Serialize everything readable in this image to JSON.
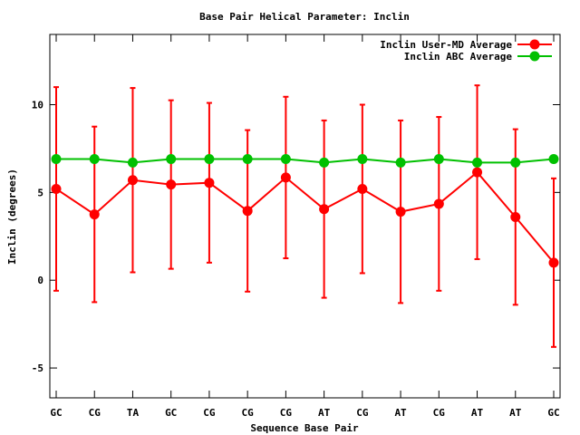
{
  "chart_data": {
    "type": "line",
    "title": "Base Pair Helical Parameter: Inclin",
    "xlabel": "Sequence Base Pair",
    "ylabel": "Inclin (degrees)",
    "categories": [
      "GC",
      "CG",
      "TA",
      "GC",
      "CG",
      "CG",
      "CG",
      "AT",
      "CG",
      "AT",
      "CG",
      "AT",
      "AT",
      "GC"
    ],
    "ylim": [
      -6.7,
      14
    ],
    "yticks": [
      "-5",
      "0",
      "5",
      "10"
    ],
    "legend_position": "top-right",
    "grid": false,
    "series": [
      {
        "name": "Inclin User-MD Average",
        "color": "#ff0000",
        "values": [
          5.2,
          3.75,
          5.7,
          5.45,
          5.55,
          3.95,
          5.85,
          4.05,
          5.2,
          3.9,
          4.35,
          6.15,
          3.6,
          1.0
        ],
        "errors": [
          5.8,
          5.0,
          5.25,
          4.8,
          4.55,
          4.6,
          4.6,
          5.05,
          4.8,
          5.2,
          4.95,
          4.95,
          5.0,
          4.8
        ]
      },
      {
        "name": "Inclin ABC Average",
        "color": "#00c000",
        "values": [
          6.9,
          6.9,
          6.7,
          6.9,
          6.9,
          6.9,
          6.9,
          6.7,
          6.9,
          6.7,
          6.9,
          6.7,
          6.7,
          6.9
        ]
      }
    ]
  }
}
